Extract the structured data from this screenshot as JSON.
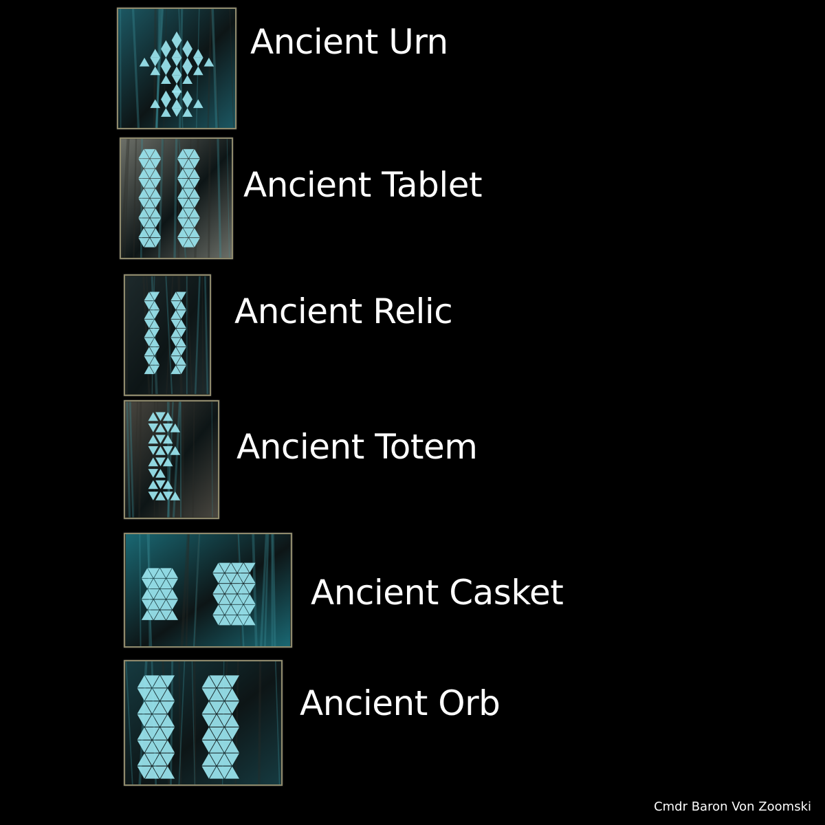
{
  "artifacts": [
    {
      "name": "Ancient Urn",
      "icon": "urn-glyph-icon",
      "tint": "#1c5863"
    },
    {
      "name": "Ancient Tablet",
      "icon": "tablet-glyph-icon",
      "tint": "#6c6f68"
    },
    {
      "name": "Ancient Relic",
      "icon": "relic-glyph-icon",
      "tint": "#1e2a2c"
    },
    {
      "name": "Ancient Totem",
      "icon": "totem-glyph-icon",
      "tint": "#4a4740"
    },
    {
      "name": "Ancient Casket",
      "icon": "casket-glyph-icon",
      "tint": "#1a6873"
    },
    {
      "name": "Ancient Orb",
      "icon": "orb-glyph-icon",
      "tint": "#163a40"
    }
  ],
  "credit": "Cmdr Baron Von Zoomski",
  "colors": {
    "background": "#000000",
    "glyph": "#9be6f0",
    "frame": "#8f8a6c",
    "text": "#ffffff"
  }
}
